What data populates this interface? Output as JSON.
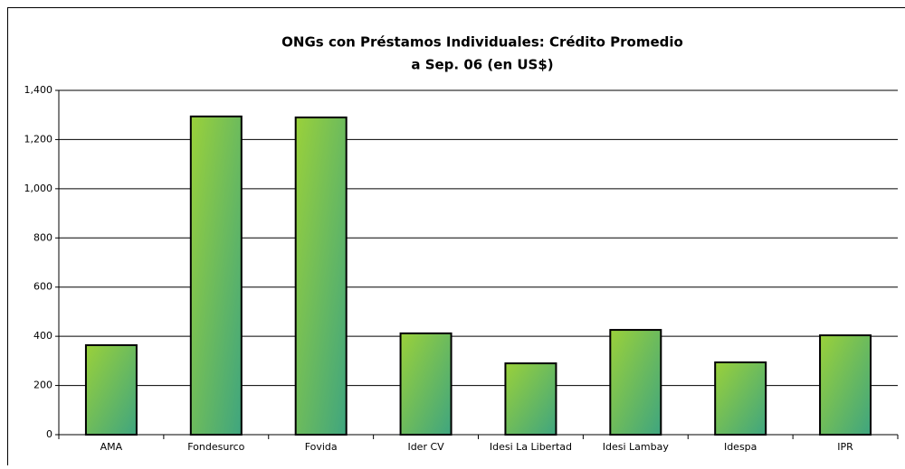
{
  "chart_data": {
    "type": "bar",
    "title": "ONGs con Préstamos Individuales: Crédito Promedio",
    "subtitle": "a  Sep. 06 (en US$)",
    "categories": [
      "AMA",
      "Fondesurco",
      "Fovida",
      "Ider CV",
      "Idesi La Libertad",
      "Idesi Lambay",
      "Idespa",
      "IPR"
    ],
    "values": [
      364,
      1294,
      1290,
      412,
      290,
      426,
      294,
      404
    ],
    "color": "#9ad13a",
    "ylim": [
      0,
      1400
    ],
    "yticks": [
      0,
      200,
      400,
      600,
      800,
      {
        "value": 1000,
        "label": "1,000"
      },
      {
        "value": 1200,
        "label": "1,200"
      },
      {
        "value": 1400,
        "label": "1,400"
      }
    ],
    "grid": true
  }
}
